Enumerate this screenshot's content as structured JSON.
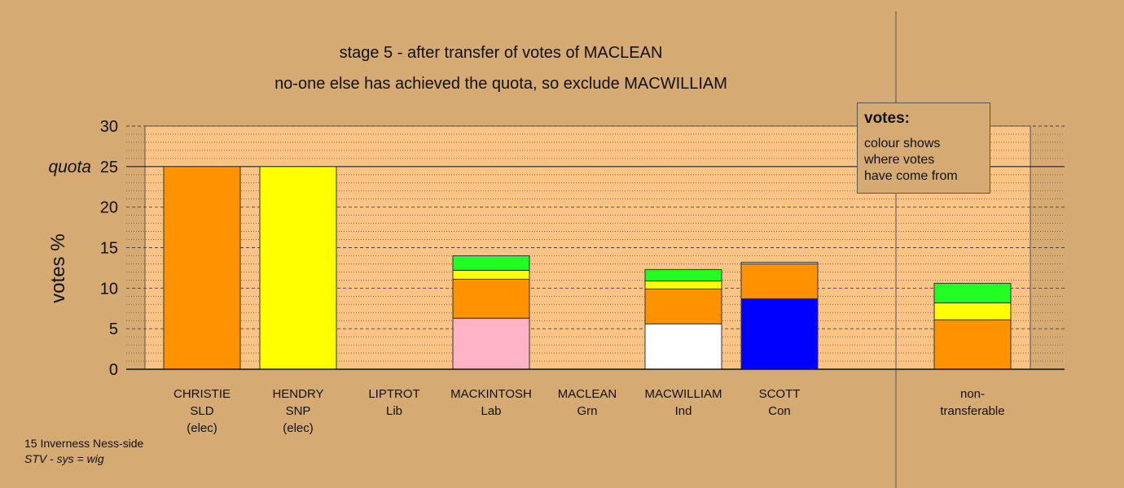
{
  "header": {
    "title": "stage 5 - after transfer of votes of MACLEAN",
    "subtitle": "no-one else has achieved the quota, so exclude MACWILLIAM"
  },
  "legend": {
    "title": "votes:",
    "lines": [
      "colour shows",
      "where votes",
      "have come from"
    ]
  },
  "footer": {
    "ward": "15 Inverness Ness-side",
    "system": "STV - sys = wig"
  },
  "colors": {
    "background": "#d6aa73",
    "plot_area": "#fbc484",
    "SLD": "#ff9200",
    "SNP": "#ffff00",
    "Lab": "#ffb3c6",
    "Ind": "#ffffff",
    "Con": "#0000ff",
    "Grn": "#22ff22"
  },
  "chart_data": {
    "type": "bar",
    "stacked": true,
    "ylabel": "votes %",
    "ylim": [
      0,
      30
    ],
    "yticks": [
      0,
      5,
      10,
      15,
      20,
      25,
      30
    ],
    "ytick_labels": [
      "0",
      "5",
      "10",
      "15",
      "20",
      "25",
      "30"
    ],
    "quota": {
      "label": "quota",
      "value": 25
    },
    "grid": true,
    "legend_position": "top-right",
    "categories": [
      {
        "name": "CHRISTIE",
        "party": "SLD",
        "status": "(elec)",
        "segments": [
          {
            "from": "SLD",
            "value": 25.0
          }
        ]
      },
      {
        "name": "HENDRY",
        "party": "SNP",
        "status": "(elec)",
        "segments": [
          {
            "from": "SNP",
            "value": 25.0
          }
        ]
      },
      {
        "name": "LIPTROT",
        "party": "Lib",
        "status": "",
        "segments": []
      },
      {
        "name": "MACKINTOSH",
        "party": "Lab",
        "status": "",
        "segments": [
          {
            "from": "Lab",
            "value": 6.3
          },
          {
            "from": "SLD",
            "value": 4.8
          },
          {
            "from": "SNP",
            "value": 1.1
          },
          {
            "from": "Grn",
            "value": 1.8
          }
        ]
      },
      {
        "name": "MACLEAN",
        "party": "Grn",
        "status": "",
        "segments": []
      },
      {
        "name": "MACWILLIAM",
        "party": "Ind",
        "status": "",
        "segments": [
          {
            "from": "Ind",
            "value": 5.6
          },
          {
            "from": "SLD",
            "value": 4.3
          },
          {
            "from": "SNP",
            "value": 1.0
          },
          {
            "from": "Grn",
            "value": 1.4
          }
        ]
      },
      {
        "name": "SCOTT",
        "party": "Con",
        "status": "",
        "segments": [
          {
            "from": "Con",
            "value": 8.7
          },
          {
            "from": "SLD",
            "value": 4.3
          },
          {
            "from": "SNP",
            "value": 0.2
          }
        ]
      },
      {
        "name": "non-",
        "party": "transferable",
        "status": "",
        "separate": true,
        "segments": [
          {
            "from": "SLD",
            "value": 6.1
          },
          {
            "from": "SNP",
            "value": 2.1
          },
          {
            "from": "Grn",
            "value": 2.4
          }
        ]
      }
    ]
  }
}
